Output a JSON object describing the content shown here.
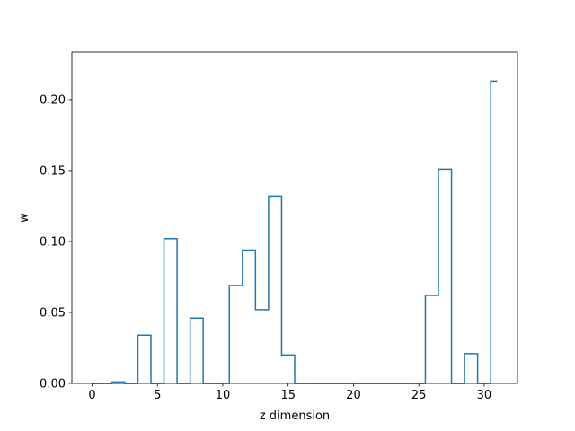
{
  "chart_data": {
    "type": "step",
    "title": "",
    "xlabel": "z dimension",
    "ylabel": "w",
    "xlim": [
      -1.55,
      32.55
    ],
    "ylim": [
      0,
      0.2335
    ],
    "grid": false,
    "legend": "none",
    "line_color": "#1f77b4",
    "x_ticks": [
      0,
      5,
      10,
      15,
      20,
      25,
      30
    ],
    "x_tick_labels": [
      "0",
      "5",
      "10",
      "15",
      "20",
      "25",
      "30"
    ],
    "y_ticks": [
      0.0,
      0.05,
      0.1,
      0.15,
      0.2
    ],
    "y_tick_labels": [
      "0.00",
      "0.05",
      "0.10",
      "0.15",
      "0.20"
    ],
    "series": [
      {
        "x": [
          0,
          1,
          2,
          3,
          4,
          5,
          6,
          7,
          8,
          9,
          10,
          11,
          12,
          13,
          14,
          15,
          16,
          17,
          18,
          19,
          20,
          21,
          22,
          23,
          24,
          25,
          26,
          27,
          28,
          29,
          30,
          31
        ],
        "values": [
          0,
          0,
          0.001,
          0,
          0.034,
          0,
          0.102,
          0,
          0.046,
          0,
          0,
          0.069,
          0.094,
          0.052,
          0.132,
          0.02,
          0,
          0,
          0,
          0,
          0,
          0,
          0,
          0,
          0,
          0,
          0.062,
          0.151,
          0,
          0.021,
          0,
          0.213
        ]
      }
    ]
  }
}
